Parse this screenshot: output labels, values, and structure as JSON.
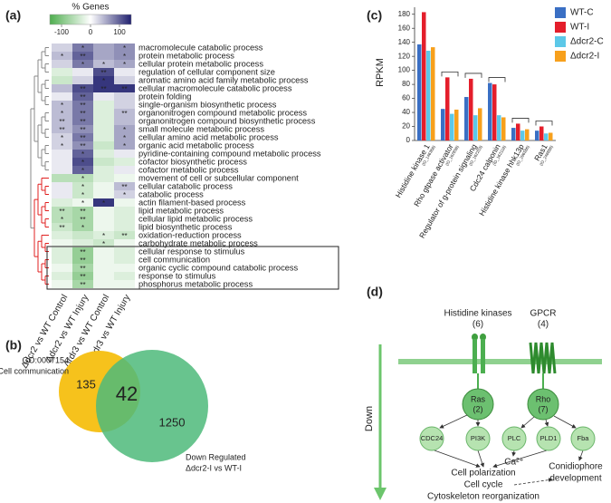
{
  "chart_data": [
    {
      "type": "heatmap",
      "panel": "(a)",
      "colorbar_label": "% Genes",
      "zlim": [
        -100,
        100
      ],
      "colorbar_ticks": [
        -100,
        0,
        100
      ],
      "colorscale": [
        "#4fae4f",
        "#ffffff",
        "#20206e"
      ],
      "columns": [
        "Δdcr2 vs WT Control",
        "Δdcr2 vs WT Injury",
        "Δrdr3 vs WT Control",
        "Δrdr3 vs WT Injury"
      ],
      "rows": [
        "macromolecule catabolic process",
        "protein metabolic process",
        "cellular protein metabolic process",
        "regulation of cellular component size",
        "aromatic amino acid family metabolic process",
        "cellular macromolecule catabolic process",
        "protein folding",
        "single-organism biosynthetic process",
        "organonitrogen compound metabolic process",
        "organonitrogen compound biosynthetic process",
        "small molecule metabolic process",
        "cellular amino acid metabolic process",
        "organic acid metabolic process",
        "pyridine-containing compound metabolic process",
        "cofactor biosynthetic process",
        "cofactor metabolic process",
        "movement of cell or subcellular component",
        "cellular catabolic process",
        "catabolic process",
        "actin filament-based process",
        "lipid metabolic process",
        "cellular lipid metabolic process",
        "lipid biosynthetic process",
        "oxidation-reduction process",
        "carbohydrate metabolic process",
        "cellular response to stimulus",
        "cell communication",
        "organic cyclic compound catabolic process",
        "response to stimulus",
        "phosphorus metabolic process"
      ],
      "values": [
        [
          20,
          60,
          40,
          50
        ],
        [
          30,
          70,
          40,
          50
        ],
        [
          20,
          60,
          30,
          40
        ],
        [
          -20,
          10,
          80,
          10
        ],
        [
          -30,
          20,
          90,
          20
        ],
        [
          30,
          80,
          90,
          90
        ],
        [
          10,
          70,
          10,
          20
        ],
        [
          30,
          60,
          -20,
          20
        ],
        [
          30,
          60,
          -20,
          30
        ],
        [
          30,
          60,
          -20,
          30
        ],
        [
          30,
          50,
          -20,
          40
        ],
        [
          20,
          60,
          -20,
          40
        ],
        [
          20,
          50,
          -30,
          40
        ],
        [
          10,
          70,
          -20,
          10
        ],
        [
          10,
          80,
          -30,
          -20
        ],
        [
          10,
          70,
          -20,
          10
        ],
        [
          -40,
          -40,
          -20,
          -10
        ],
        [
          10,
          -30,
          -10,
          30
        ],
        [
          10,
          -30,
          -10,
          20
        ],
        [
          -20,
          -10,
          90,
          -10
        ],
        [
          -40,
          -50,
          -10,
          -20
        ],
        [
          -40,
          -50,
          -10,
          -20
        ],
        [
          -30,
          -50,
          -10,
          -20
        ],
        [
          -20,
          -30,
          -20,
          -30
        ],
        [
          -10,
          -20,
          -30,
          -10
        ],
        [
          -20,
          -60,
          -10,
          -20
        ],
        [
          -20,
          -60,
          -10,
          -20
        ],
        [
          -10,
          -50,
          -10,
          -10
        ],
        [
          -20,
          -60,
          -10,
          -20
        ],
        [
          -10,
          -50,
          -10,
          -10
        ]
      ],
      "annotations": [
        [
          null,
          "*",
          null,
          "*"
        ],
        [
          "*",
          "**",
          null,
          "*"
        ],
        [
          null,
          "*",
          "*",
          "*"
        ],
        [
          null,
          null,
          "**",
          null
        ],
        [
          null,
          null,
          "*",
          null
        ],
        [
          null,
          "**",
          "**",
          "**"
        ],
        [
          null,
          "**",
          null,
          null
        ],
        [
          "*",
          "**",
          null,
          null
        ],
        [
          "*",
          "**",
          null,
          "**"
        ],
        [
          "**",
          "**",
          null,
          null
        ],
        [
          "**",
          "**",
          null,
          "*"
        ],
        [
          "*",
          "**",
          null,
          "*"
        ],
        [
          "*",
          "**",
          null,
          "*"
        ],
        [
          null,
          "*",
          null,
          null
        ],
        [
          null,
          "*",
          null,
          null
        ],
        [
          null,
          "*",
          null,
          null
        ],
        [
          null,
          "*",
          null,
          null
        ],
        [
          null,
          "*",
          null,
          "**"
        ],
        [
          null,
          "*",
          null,
          "*"
        ],
        [
          null,
          "*",
          "*",
          null
        ],
        [
          "**",
          "**",
          null,
          null
        ],
        [
          "*",
          "**",
          null,
          null
        ],
        [
          "**",
          "*",
          null,
          null
        ],
        [
          null,
          null,
          "*",
          "**"
        ],
        [
          null,
          null,
          "*",
          null
        ],
        [
          null,
          "**",
          null,
          null
        ],
        [
          null,
          "**",
          null,
          null
        ],
        [
          null,
          "**",
          null,
          null
        ],
        [
          null,
          "**",
          null,
          null
        ],
        [
          null,
          "**",
          null,
          null
        ]
      ]
    },
    {
      "type": "venn",
      "panel": "(b)",
      "values": [
        135,
        42,
        1250
      ],
      "sets": [
        {
          "name": [
            "GO:0007154",
            "Cell communication"
          ],
          "color": "#f6c21c"
        },
        {
          "name": [
            "Down Regulated",
            "Δdcr2-I vs WT-I"
          ],
          "color": "#4dba7a"
        }
      ]
    },
    {
      "type": "bar",
      "panel": "(c)",
      "ylabel": "RPKM",
      "ylim": [
        0,
        190
      ],
      "yticks": [
        0,
        20,
        40,
        60,
        80,
        100,
        120,
        140,
        160,
        180
      ],
      "categories": [
        "Histidine kinase 1",
        "Rho gtpase activator",
        "Regulator of g-protein signaling",
        "Cdc24 calponin",
        "Histidine kinase hhk13p",
        "Ras1"
      ],
      "category_ids": [
        "(ID_146368)",
        "(ID_162898)",
        "(ID_162203)",
        "(ID_162118)",
        "(ID_296586)",
        "(ID_248886)"
      ],
      "series": [
        {
          "name": "WT-C",
          "color": "#3a6fc4",
          "values": [
            137,
            45,
            62,
            82,
            18,
            14
          ]
        },
        {
          "name": "WT-I",
          "color": "#e41e2b",
          "values": [
            183,
            90,
            88,
            80,
            24,
            20
          ]
        },
        {
          "name": "Δdcr2-C",
          "color": "#5cc8e8",
          "values": [
            128,
            38,
            36,
            36,
            14,
            10
          ]
        },
        {
          "name": "Δdcr2-I",
          "color": "#f7a01c",
          "values": [
            133,
            44,
            46,
            33,
            16,
            11
          ]
        }
      ]
    }
  ],
  "diagram": {
    "panel": "(d)",
    "receptors": [
      {
        "label": "Histidine kinases",
        "count": "(6)"
      },
      {
        "label": "GPCR",
        "count": "(4)"
      }
    ],
    "direction": "Down",
    "hubs": [
      {
        "label": "Ras",
        "count": "(2)"
      },
      {
        "label": "Rho",
        "count": "(7)"
      }
    ],
    "effectors": [
      "CDC24",
      "PI3K",
      "PLC",
      "PLD1",
      "Fba"
    ],
    "ion": "Ca²⁺",
    "outcomes": [
      "Cell polarization",
      "Cell cycle",
      "Cytoskeleton reorganization"
    ],
    "development": [
      "Conidiophore",
      "development"
    ]
  }
}
